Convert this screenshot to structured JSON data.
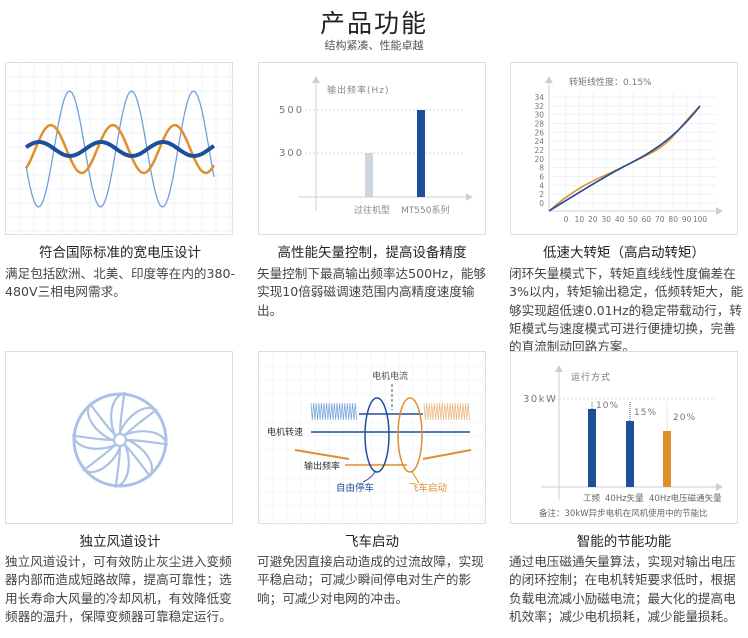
{
  "header": {
    "title": "产品功能",
    "subtitle": "结构紧凑、性能卓越"
  },
  "colors": {
    "blue": "#1f4e9c",
    "orange": "#e08f2a",
    "light_blue": "#6fa0dc",
    "grey_bar": "#cdd5e0"
  },
  "features": [
    {
      "title": "符合国际标准的宽电压设计",
      "desc": "满足包括欧洲、北美、印度等在内的380-480V三相电网需求。"
    },
    {
      "title": "高性能矢量控制，提高设备精度",
      "desc": "矢量控制下最高输出频率达500Hz，能够实现10倍弱磁调速范围内高精度速度输出。",
      "chart": {
        "axis_label": "输出频率(Hz)",
        "ticks": [
          "500",
          "300"
        ],
        "bars": [
          {
            "label": "过往机型",
            "value": 300
          },
          {
            "label": "MT550系列",
            "value": 500
          }
        ]
      }
    },
    {
      "title": "低速大转矩（高启动转矩）",
      "desc": "闭环矢量模式下，转矩直线线性度偏差在3%以内，转矩输出稳定，低频转矩大，能够实现超低速0.01Hz的稳定带载动行，转矩模式与速度模式可进行便捷切换，完善的直流制动回路方案。",
      "chart": {
        "label": "转矩线性度：0.15%",
        "y_ticks": [
          "34",
          "32",
          "30",
          "28",
          "26",
          "24",
          "22",
          "20",
          "8",
          "6",
          "4",
          "2",
          "0"
        ],
        "x_ticks": [
          "0",
          "10",
          "20",
          "30",
          "40",
          "50",
          "60",
          "70",
          "80",
          "90",
          "100"
        ]
      }
    },
    {
      "title": "独立风道设计",
      "desc": "独立风道设计，可有效防止灰尘进入变频器内部而造成短路故障，提高可靠性；选用长寿命大风量的冷却风机，有效降低变频器的温升，保障变频器可靠稳定运行。"
    },
    {
      "title": "飞车启动",
      "desc": "可避免因直接启动造成的过流故障，实现平稳启动；可减少瞬间停电对生产的影响；可减少对电网的冲击。",
      "diagram": {
        "current": "电机电流",
        "speed": "电机转速",
        "freq": "输出频率",
        "coast": "自由停车",
        "flying": "飞车启动"
      }
    },
    {
      "title": "智能的节能功能",
      "desc": "通过电压磁通矢量算法，实现对输出电压的闭环控制；在电机转矩要求低时，根据负载电流减小励磁电流；最大化的提高电机效率；减少电机损耗，减少能量损耗。",
      "chart": {
        "axis_label": "运行方式",
        "tick": "30kW",
        "bars": [
          {
            "label": "工频",
            "pct": "10%"
          },
          {
            "label": "40Hz矢量",
            "pct": "15%"
          },
          {
            "label": "40Hz电压磁通矢量",
            "pct": "20%"
          }
        ],
        "note": "备注：30kW异步电机在风机使用中的节能比"
      }
    }
  ]
}
